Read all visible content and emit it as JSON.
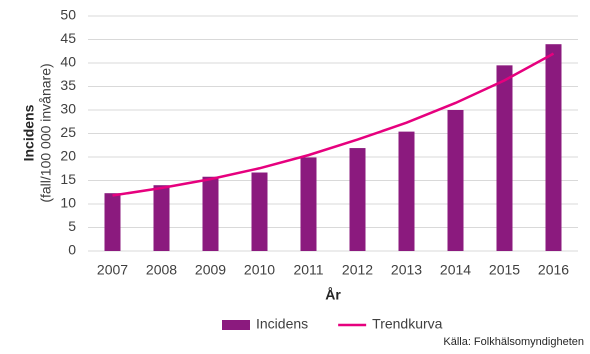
{
  "chart_data": {
    "type": "bar",
    "categories": [
      "2007",
      "2008",
      "2009",
      "2010",
      "2011",
      "2012",
      "2013",
      "2014",
      "2015",
      "2016"
    ],
    "series": [
      {
        "name": "Incidens",
        "type": "bar",
        "color": "#8b1a7e",
        "values": [
          12.3,
          14,
          15.8,
          16.7,
          19.9,
          21.9,
          25.4,
          30,
          39.5,
          44
        ]
      },
      {
        "name": "Trendkurva",
        "type": "line",
        "color": "#e6007e",
        "values": [
          11.8,
          13.4,
          15.3,
          17.6,
          20.4,
          23.7,
          27.3,
          31.5,
          36.3,
          42
        ]
      }
    ],
    "ylabel": [
      "Incidens",
      "(fall/100 000 invånare)"
    ],
    "xlabel": "År",
    "source": "Källa:  Folkhälsomyndigheten",
    "ylim": [
      0,
      50
    ],
    "yticks": [
      0,
      5,
      10,
      15,
      20,
      25,
      30,
      35,
      40,
      45,
      50
    ],
    "grid": true,
    "legend": "bottom"
  }
}
